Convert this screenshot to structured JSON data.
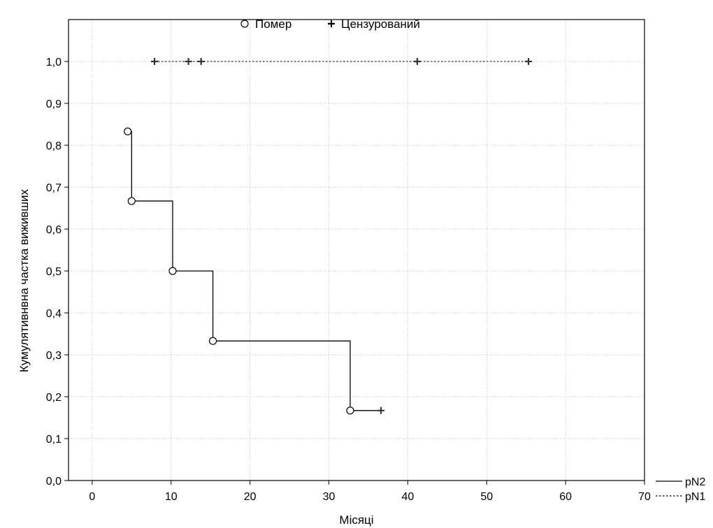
{
  "chart_data": {
    "type": "line",
    "title": "",
    "xlabel": "Місяці",
    "ylabel": "Кумулятивнвна частка виживших",
    "xlim": [
      -3,
      70
    ],
    "ylim": [
      0,
      1.1
    ],
    "x_ticks": [
      {
        "value": 0,
        "label": "0"
      },
      {
        "value": 10,
        "label": "10"
      },
      {
        "value": 20,
        "label": "20"
      },
      {
        "value": 30,
        "label": "30"
      },
      {
        "value": 40,
        "label": "40"
      },
      {
        "value": 50,
        "label": "50"
      },
      {
        "value": 60,
        "label": "60"
      },
      {
        "value": 70,
        "label": "70"
      }
    ],
    "y_ticks": [
      {
        "value": 0.0,
        "label": "0,0"
      },
      {
        "value": 0.1,
        "label": "0,1"
      },
      {
        "value": 0.2,
        "label": "0,2"
      },
      {
        "value": 0.3,
        "label": "0,3"
      },
      {
        "value": 0.4,
        "label": "0,4"
      },
      {
        "value": 0.5,
        "label": "0,5"
      },
      {
        "value": 0.6,
        "label": "0,6"
      },
      {
        "value": 0.7,
        "label": "0,7"
      },
      {
        "value": 0.8,
        "label": "0,8"
      },
      {
        "value": 0.9,
        "label": "0,9"
      },
      {
        "value": 1.0,
        "label": "1,0"
      }
    ],
    "grid": true,
    "legend_markers": {
      "position": "top-center",
      "items": [
        {
          "marker": "circle",
          "label": "Помер"
        },
        {
          "marker": "plus",
          "label": "Цензурований"
        }
      ]
    },
    "series": [
      {
        "name": "pN2",
        "line_style": "solid",
        "color": "#000000",
        "steps": [
          [
            4.5,
            0.833
          ],
          [
            5.0,
            0.667
          ],
          [
            10.2,
            0.5
          ],
          [
            15.3,
            0.333
          ],
          [
            32.7,
            0.167
          ],
          [
            36.6,
            0.167
          ]
        ],
        "deaths": [
          [
            4.5,
            0.833
          ],
          [
            5.0,
            0.667
          ],
          [
            10.2,
            0.5
          ],
          [
            15.3,
            0.333
          ],
          [
            32.7,
            0.167
          ]
        ],
        "censored": [
          [
            36.6,
            0.167
          ]
        ]
      },
      {
        "name": "pN1",
        "line_style": "dotted",
        "color": "#333333",
        "steps": [
          [
            7.9,
            1.0
          ],
          [
            55.3,
            1.0
          ]
        ],
        "deaths": [],
        "censored": [
          [
            7.9,
            1.0
          ],
          [
            12.2,
            1.0
          ],
          [
            13.8,
            1.0
          ],
          [
            41.2,
            1.0
          ],
          [
            55.3,
            1.0
          ]
        ]
      }
    ],
    "series_legend": {
      "position": "bottom-right",
      "items": [
        {
          "line_style": "solid",
          "label": "pN2"
        },
        {
          "line_style": "dotted",
          "label": "pN1"
        }
      ]
    }
  }
}
